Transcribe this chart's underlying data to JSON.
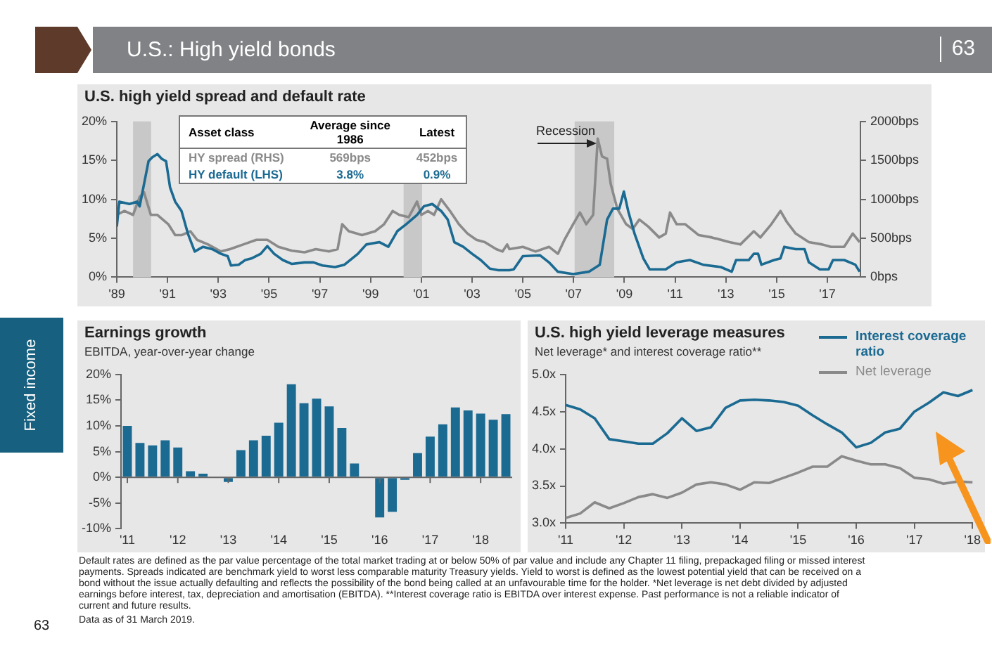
{
  "chart_data": [
    {
      "type": "other",
      "title": "U.S.: High yield bonds",
      "annotations": [
        "63",
        "Fixed income",
        "Default rates are defined as the par value percentage of the total market trading at or below 50% of par value and include any Chapter 11 filing, prepackaged filing or missed interest payments. Spreads indicated are benchmark yield to worst less comparable maturity Treasury yields. Yield to worst is defined as the lowest potential yield that can be received on a bond without the issue actually defaulting and reflects the possibility of the bond being called at an unfavourable time for the holder. *Net leverage is net debt divided by adjusted earnings before interest, tax, depreciation and amortisation (EBITDA). **Interest coverage ratio is EBITDA over interest expense. Past performance is not a reliable indicator of current and future results.",
        "Data as of 31 March 2019.",
        "63"
      ]
    },
    {
      "type": "line",
      "title": "U.S. high yield spread and default rate",
      "xlim": [
        1989,
        2018.3
      ],
      "xticks": [
        {
          "value": 1989,
          "label": "'89"
        },
        {
          "value": 1991,
          "label": "'91"
        },
        {
          "value": 1993,
          "label": "'93"
        },
        {
          "value": 1995,
          "label": "'95"
        },
        {
          "value": 1997,
          "label": "'97"
        },
        {
          "value": 1999,
          "label": "'99"
        },
        {
          "value": 2001,
          "label": "'01"
        },
        {
          "value": 2003,
          "label": "'03"
        },
        {
          "value": 2005,
          "label": "'05"
        },
        {
          "value": 2007,
          "label": "'07"
        },
        {
          "value": 2009,
          "label": "'09"
        },
        {
          "value": 2011,
          "label": "'11"
        },
        {
          "value": 2013,
          "label": "'13"
        },
        {
          "value": 2015,
          "label": "'15"
        },
        {
          "value": 2017,
          "label": "'17"
        }
      ],
      "ylim": [
        0,
        20
      ],
      "yticks": [
        {
          "value": 0,
          "label": "0%"
        },
        {
          "value": 5,
          "label": "5%"
        },
        {
          "value": 10,
          "label": "10%"
        },
        {
          "value": 15,
          "label": "15%"
        },
        {
          "value": 20,
          "label": "20%"
        }
      ],
      "y2lim": [
        0,
        2000
      ],
      "y2ticks": [
        {
          "value": 0,
          "label": "0bps"
        },
        {
          "value": 500,
          "label": "500bps"
        },
        {
          "value": 1000,
          "label": "1000bps"
        },
        {
          "value": 1500,
          "label": "1500bps"
        },
        {
          "value": 2000,
          "label": "2000bps"
        }
      ],
      "series": [
        {
          "name": "HY default (LHS)",
          "color": "#1b6a92",
          "x": [
            1989.0,
            1989.1,
            1989.5,
            1989.8,
            1989.9,
            1990.25,
            1990.4,
            1990.6,
            1990.77,
            1990.94,
            1991.1,
            1991.3,
            1991.55,
            1991.8,
            1992.07,
            1992.4,
            1992.76,
            1993.1,
            1993.37,
            1993.5,
            1993.8,
            1994.06,
            1994.3,
            1994.67,
            1994.93,
            1995.2,
            1995.54,
            1995.9,
            1996.4,
            1996.75,
            1997.1,
            1997.6,
            1997.97,
            1998.5,
            1998.83,
            1999.35,
            1999.7,
            2000.05,
            2000.4,
            2000.83,
            2001.1,
            2001.43,
            2001.78,
            2002.04,
            2002.3,
            2002.65,
            2003.0,
            2003.34,
            2003.7,
            2004.04,
            2004.47,
            2004.64,
            2005.0,
            2005.68,
            2006.03,
            2006.38,
            2006.98,
            2007.6,
            2008.03,
            2008.32,
            2008.55,
            2008.8,
            2008.98,
            2009.15,
            2009.4,
            2009.75,
            2010.0,
            2010.63,
            2011.06,
            2011.58,
            2012.1,
            2012.8,
            2013.23,
            2013.4,
            2013.9,
            2014.1,
            2014.27,
            2014.4,
            2014.9,
            2015.15,
            2015.3,
            2015.75,
            2016.1,
            2016.27,
            2016.7,
            2017.05,
            2017.22,
            2017.66,
            2018.1,
            2018.27
          ],
          "values": [
            6.5,
            9.7,
            9.4,
            9.7,
            9.1,
            14.9,
            15.4,
            15.8,
            15.2,
            14.9,
            11.5,
            9.7,
            8.5,
            5.6,
            3.3,
            3.9,
            3.6,
            3.0,
            2.7,
            1.5,
            1.6,
            2.2,
            2.4,
            3.0,
            4.0,
            3.0,
            2.2,
            1.7,
            1.9,
            1.9,
            1.5,
            1.3,
            1.6,
            3.0,
            4.2,
            4.5,
            3.9,
            5.9,
            6.8,
            8.0,
            9.1,
            9.4,
            8.5,
            7.4,
            4.5,
            3.9,
            3.0,
            2.2,
            1.1,
            0.9,
            0.9,
            1.0,
            2.7,
            2.8,
            1.9,
            0.7,
            0.4,
            0.7,
            1.6,
            7.4,
            8.8,
            8.8,
            11.0,
            8.5,
            5.6,
            2.4,
            1.0,
            1.0,
            1.9,
            2.2,
            1.6,
            1.3,
            0.7,
            2.2,
            2.2,
            3.0,
            3.0,
            1.6,
            2.2,
            2.4,
            3.9,
            3.6,
            3.6,
            1.9,
            1.0,
            1.0,
            2.2,
            2.2,
            1.6,
            0.7
          ]
        },
        {
          "name": "HY spread (RHS)",
          "color": "#8a8a8a",
          "axis": "y2",
          "x": [
            1989.0,
            1989.3,
            1989.64,
            1989.9,
            1990.07,
            1990.34,
            1990.6,
            1991.03,
            1991.3,
            1991.55,
            1991.9,
            1992.16,
            1992.6,
            1993.1,
            1993.46,
            1993.98,
            1994.5,
            1994.93,
            1995.37,
            1995.9,
            1996.4,
            1996.84,
            1997.36,
            1997.7,
            1997.88,
            1998.14,
            1998.66,
            1999.18,
            1999.53,
            1999.87,
            2000.13,
            2000.5,
            2000.83,
            2001.0,
            2001.26,
            2001.5,
            2001.78,
            2002.13,
            2002.48,
            2002.82,
            2003.17,
            2003.5,
            2003.95,
            2004.2,
            2004.38,
            2004.47,
            2005.0,
            2005.5,
            2006.03,
            2006.38,
            2006.64,
            2006.98,
            2007.25,
            2007.5,
            2007.77,
            2007.95,
            2008.12,
            2008.32,
            2008.46,
            2008.72,
            2009.07,
            2009.33,
            2009.59,
            2009.94,
            2010.37,
            2010.63,
            2010.8,
            2011.06,
            2011.4,
            2011.93,
            2012.45,
            2013.14,
            2013.57,
            2014.1,
            2014.36,
            2014.79,
            2015.15,
            2015.4,
            2015.75,
            2016.27,
            2016.8,
            2017.14,
            2017.66,
            2018.0,
            2018.27
          ],
          "values": [
            800,
            850,
            800,
            1030,
            1090,
            800,
            800,
            680,
            540,
            540,
            590,
            480,
            420,
            330,
            360,
            420,
            480,
            480,
            390,
            340,
            320,
            360,
            330,
            360,
            680,
            590,
            540,
            590,
            680,
            850,
            800,
            770,
            970,
            800,
            850,
            800,
            1000,
            850,
            680,
            560,
            480,
            450,
            360,
            330,
            420,
            360,
            390,
            330,
            390,
            300,
            480,
            680,
            830,
            680,
            800,
            1780,
            1550,
            1520,
            1200,
            880,
            680,
            620,
            740,
            650,
            510,
            560,
            830,
            680,
            680,
            540,
            510,
            450,
            420,
            590,
            510,
            680,
            850,
            710,
            560,
            450,
            420,
            390,
            390,
            560,
            450
          ]
        }
      ],
      "bands": [
        {
          "axis": "x",
          "from": 1989.64,
          "to": 1990.35,
          "color": "#c8c8c9"
        },
        {
          "axis": "x",
          "from": 2000.3,
          "to": 2001.03,
          "color": "#c8c8c9"
        },
        {
          "axis": "x",
          "from": 2007.04,
          "to": 2008.6,
          "color": "#c8c8c9"
        }
      ],
      "annotations": [
        "Asset class",
        "Average since 1986",
        "Latest",
        "569bps",
        "452bps",
        "3.8%",
        "0.9%",
        "Recession"
      ]
    },
    {
      "type": "bar",
      "title": "Earnings growth",
      "subtitle": "EBITDA, year-over-year change",
      "color": "#1b6a92",
      "categories": [
        "'11",
        null,
        null,
        null,
        "'12",
        null,
        null,
        null,
        "'13",
        null,
        null,
        null,
        "'14",
        null,
        null,
        null,
        "'15",
        null,
        null,
        null,
        "'16",
        null,
        null,
        null,
        "'17",
        null,
        null,
        null,
        "'18",
        null,
        null
      ],
      "values": [
        10.0,
        6.7,
        6.2,
        7.2,
        5.8,
        1.2,
        0.7,
        0,
        -0.9,
        5.3,
        7.2,
        8.1,
        10.6,
        18.1,
        14.4,
        15.3,
        13.8,
        9.6,
        2.7,
        0,
        -7.8,
        -6.7,
        -0.5,
        4.7,
        7.9,
        10.3,
        13.6,
        13.0,
        12.4,
        11.2,
        12.3
      ],
      "ylim": [
        -10,
        20
      ],
      "yticks": [
        {
          "value": -10,
          "label": "-10%"
        },
        {
          "value": -5,
          "label": "-5%"
        },
        {
          "value": 0,
          "label": "0%"
        },
        {
          "value": 5,
          "label": "5%"
        },
        {
          "value": 10,
          "label": "10%"
        },
        {
          "value": 15,
          "label": "15%"
        },
        {
          "value": 20,
          "label": "20%"
        }
      ]
    },
    {
      "type": "line",
      "title": "U.S. high yield leverage measures",
      "subtitle": "Net leverage* and interest coverage ratio**",
      "legend": "top right",
      "categories": [
        "'11",
        null,
        null,
        null,
        "'12",
        null,
        null,
        null,
        "'13",
        null,
        null,
        null,
        "'14",
        null,
        null,
        null,
        "'15",
        null,
        null,
        null,
        "'16",
        null,
        null,
        null,
        "'17",
        null,
        null,
        null,
        "'18"
      ],
      "ylim": [
        3,
        5
      ],
      "yticks": [
        {
          "value": 3,
          "label": "3.0x"
        },
        {
          "value": 3.5,
          "label": "3.5x"
        },
        {
          "value": 4,
          "label": "4.0x"
        },
        {
          "value": 4.5,
          "label": "4.5x"
        },
        {
          "value": 5,
          "label": "5.0x"
        }
      ],
      "series": [
        {
          "name": "Interest coverage ratio",
          "color": "#1b6a92",
          "values": [
            4.59,
            4.53,
            4.41,
            4.13,
            4.1,
            4.07,
            4.07,
            4.21,
            4.41,
            4.24,
            4.29,
            4.55,
            4.65,
            4.66,
            4.65,
            4.63,
            4.58,
            4.45,
            4.33,
            4.22,
            4.02,
            4.08,
            4.22,
            4.27,
            4.5,
            4.62,
            4.76,
            4.71,
            4.79
          ]
        },
        {
          "name": "Net leverage",
          "color": "#8a8a8a",
          "values": [
            3.07,
            3.13,
            3.28,
            3.2,
            3.27,
            3.35,
            3.39,
            3.34,
            3.41,
            3.52,
            3.55,
            3.52,
            3.45,
            3.55,
            3.54,
            3.61,
            3.68,
            3.76,
            3.76,
            3.9,
            3.84,
            3.79,
            3.79,
            3.74,
            3.61,
            3.59,
            3.53,
            3.56,
            3.55
          ]
        }
      ]
    }
  ]
}
